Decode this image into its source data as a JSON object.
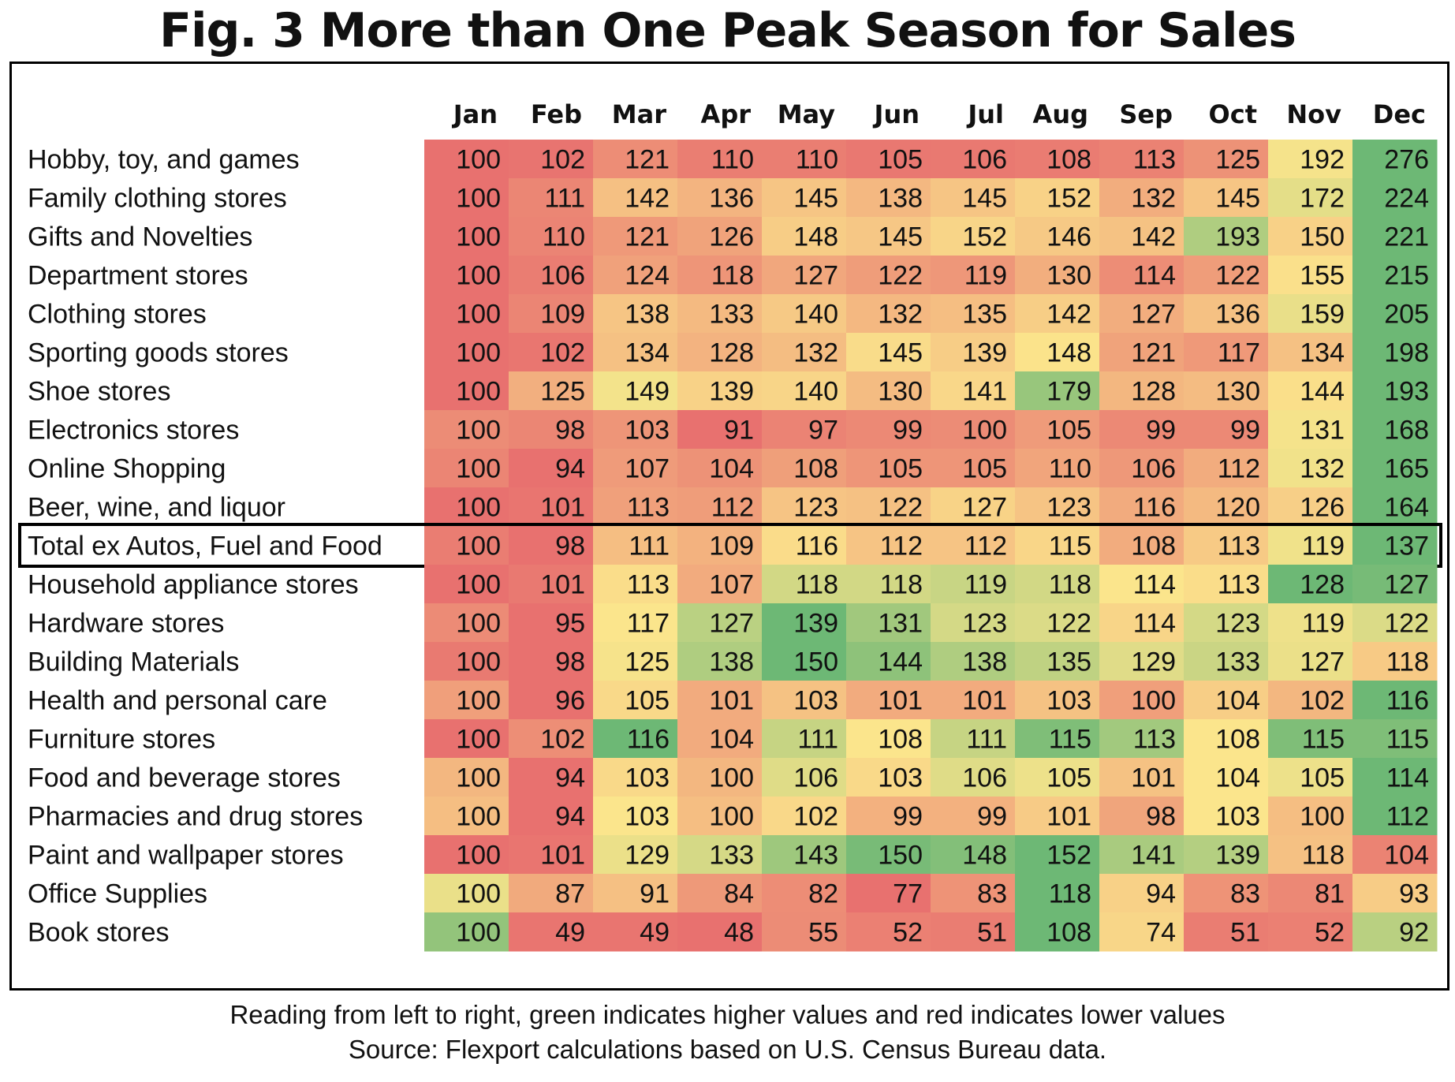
{
  "title": "Fig. 3 More than One Peak Season for Sales",
  "chart_data": {
    "type": "heatmap",
    "title": "Fig. 3 More than One Peak Season for Sales",
    "columns": [
      "Jan",
      "Feb",
      "Mar",
      "Apr",
      "May",
      "Jun",
      "Jul",
      "Aug",
      "Sep",
      "Oct",
      "Nov",
      "Dec"
    ],
    "color_scheme": "per-row: green = higher values, red = lower values",
    "highlighted_row": "Total ex Autos, Fuel and Food",
    "rows": [
      {
        "label": "Hobby, toy, and games",
        "values": [
          100,
          102,
          121,
          110,
          110,
          105,
          106,
          108,
          113,
          125,
          192,
          276
        ]
      },
      {
        "label": "Family clothing stores",
        "values": [
          100,
          111,
          142,
          136,
          145,
          138,
          145,
          152,
          132,
          145,
          172,
          224
        ]
      },
      {
        "label": "Gifts and Novelties",
        "values": [
          100,
          110,
          121,
          126,
          148,
          145,
          152,
          146,
          142,
          193,
          150,
          221
        ]
      },
      {
        "label": "Department stores",
        "values": [
          100,
          106,
          124,
          118,
          127,
          122,
          119,
          130,
          114,
          122,
          155,
          215
        ]
      },
      {
        "label": "Clothing stores",
        "values": [
          100,
          109,
          138,
          133,
          140,
          132,
          135,
          142,
          127,
          136,
          159,
          205
        ]
      },
      {
        "label": "Sporting goods stores",
        "values": [
          100,
          102,
          134,
          128,
          132,
          145,
          139,
          148,
          121,
          117,
          134,
          198
        ]
      },
      {
        "label": "Shoe stores",
        "values": [
          100,
          125,
          149,
          139,
          140,
          130,
          141,
          179,
          128,
          130,
          144,
          193
        ]
      },
      {
        "label": "Electronics stores",
        "values": [
          100,
          98,
          103,
          91,
          97,
          99,
          100,
          105,
          99,
          99,
          131,
          168
        ]
      },
      {
        "label": "Online Shopping",
        "values": [
          100,
          94,
          107,
          104,
          108,
          105,
          105,
          110,
          106,
          112,
          132,
          165
        ]
      },
      {
        "label": "Beer, wine, and liquor",
        "values": [
          100,
          101,
          113,
          112,
          123,
          122,
          127,
          123,
          116,
          120,
          126,
          164
        ]
      },
      {
        "label": "Total ex Autos, Fuel and Food",
        "values": [
          100,
          98,
          111,
          109,
          116,
          112,
          112,
          115,
          108,
          113,
          119,
          137
        ]
      },
      {
        "label": "Household appliance stores",
        "values": [
          100,
          101,
          113,
          107,
          118,
          118,
          119,
          118,
          114,
          113,
          128,
          127
        ]
      },
      {
        "label": "Hardware stores",
        "values": [
          100,
          95,
          117,
          127,
          139,
          131,
          123,
          122,
          114,
          123,
          119,
          122
        ]
      },
      {
        "label": "Building Materials",
        "values": [
          100,
          98,
          125,
          138,
          150,
          144,
          138,
          135,
          129,
          133,
          127,
          118
        ]
      },
      {
        "label": "Health and personal care",
        "values": [
          100,
          96,
          105,
          101,
          103,
          101,
          101,
          103,
          100,
          104,
          102,
          116
        ]
      },
      {
        "label": "Furniture stores",
        "values": [
          100,
          102,
          116,
          104,
          111,
          108,
          111,
          115,
          113,
          108,
          115,
          115
        ]
      },
      {
        "label": "Food and beverage stores",
        "values": [
          100,
          94,
          103,
          100,
          106,
          103,
          106,
          105,
          101,
          104,
          105,
          114
        ]
      },
      {
        "label": "Pharmacies and drug stores",
        "values": [
          100,
          94,
          103,
          100,
          102,
          99,
          99,
          101,
          98,
          103,
          100,
          112
        ]
      },
      {
        "label": "Paint and wallpaper stores",
        "values": [
          100,
          101,
          129,
          133,
          143,
          150,
          148,
          152,
          141,
          139,
          118,
          104
        ]
      },
      {
        "label": "Office Supplies",
        "values": [
          100,
          87,
          91,
          84,
          82,
          77,
          83,
          118,
          94,
          83,
          81,
          93
        ]
      },
      {
        "label": "Book stores",
        "values": [
          100,
          49,
          49,
          48,
          55,
          52,
          51,
          108,
          74,
          51,
          52,
          92
        ]
      }
    ]
  },
  "footnote": {
    "line1": "Reading from left to right, green indicates higher values and red indicates lower values",
    "line2": "Source: Flexport calculations based on U.S. Census Bureau data."
  },
  "colors": {
    "low": "#e8716f",
    "mid": "#fbe58c",
    "high": "#6db875"
  }
}
